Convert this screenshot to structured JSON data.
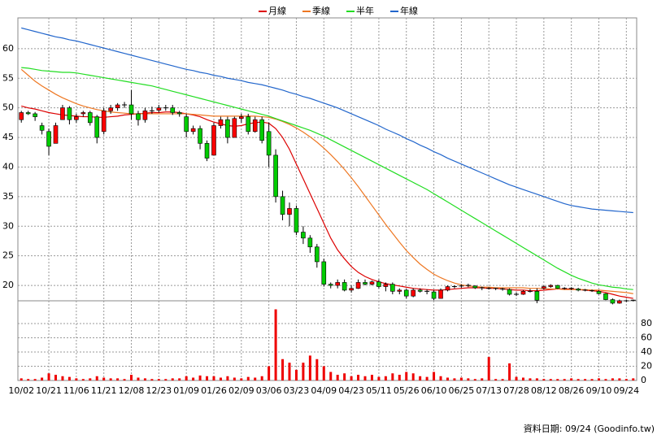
{
  "chart_data": {
    "type": "candlestick",
    "categories": [
      "10/02",
      null,
      null,
      null,
      "10/21",
      null,
      null,
      null,
      "11/06",
      null,
      null,
      null,
      "11/21",
      null,
      null,
      null,
      "12/08",
      null,
      null,
      null,
      "12/23",
      null,
      null,
      null,
      "01/09",
      null,
      null,
      null,
      "01/26",
      null,
      null,
      null,
      "02/09",
      null,
      null,
      null,
      "03/06",
      null,
      null,
      null,
      "03/23",
      null,
      null,
      null,
      "04/09",
      null,
      null,
      null,
      "04/23",
      null,
      null,
      null,
      "05/11",
      null,
      null,
      null,
      "05/26",
      null,
      null,
      null,
      "06/10",
      null,
      null,
      null,
      "06/25",
      null,
      null,
      null,
      "07/13",
      null,
      null,
      null,
      "07/28",
      null,
      null,
      null,
      "08/12",
      null,
      null,
      null,
      "08/26",
      null,
      null,
      null,
      "09/10",
      null,
      null,
      null,
      "09/24",
      null
    ],
    "ohlc": [
      [
        48,
        49.5,
        47.5,
        49.2
      ],
      [
        49.2,
        49.5,
        48.8,
        49
      ],
      [
        49,
        49.3,
        47.8,
        48.5
      ],
      [
        47,
        47.5,
        45.5,
        46.2
      ],
      [
        46,
        46.5,
        42,
        43.5
      ],
      [
        44,
        47.5,
        44,
        47
      ],
      [
        48,
        50.5,
        48,
        50
      ],
      [
        50,
        50.3,
        47.2,
        48
      ],
      [
        48,
        49,
        47.5,
        48.5
      ],
      [
        49,
        49.5,
        48.5,
        49.2
      ],
      [
        49.2,
        49.5,
        47,
        47.5
      ],
      [
        48.5,
        48.8,
        44,
        45
      ],
      [
        46,
        50,
        45.5,
        49.5
      ],
      [
        49.5,
        50.5,
        49,
        50
      ],
      [
        50,
        50.8,
        49.5,
        50.5
      ],
      [
        50.5,
        51,
        50,
        50.6
      ],
      [
        50.5,
        53,
        48,
        49
      ],
      [
        49,
        49.5,
        47,
        48
      ],
      [
        48,
        50,
        47.5,
        49.5
      ],
      [
        49.5,
        50.2,
        49,
        49.6
      ],
      [
        49.6,
        50.5,
        49.2,
        50
      ],
      [
        50,
        50.5,
        49.5,
        50.1
      ],
      [
        50,
        50.5,
        48.8,
        49.2
      ],
      [
        49.2,
        49.5,
        48.5,
        49
      ],
      [
        48.5,
        49,
        45,
        46
      ],
      [
        46,
        47,
        45.5,
        46.5
      ],
      [
        46.5,
        47,
        43,
        44
      ],
      [
        44,
        44.5,
        41,
        41.5
      ],
      [
        42,
        47.5,
        42,
        47
      ],
      [
        47,
        48.5,
        46.5,
        48
      ],
      [
        48,
        48.5,
        44,
        45
      ],
      [
        45,
        48.5,
        45,
        48.2
      ],
      [
        48.2,
        49,
        47.5,
        48.5
      ],
      [
        48.5,
        49,
        45.5,
        46
      ],
      [
        46,
        48.5,
        45.8,
        48
      ],
      [
        48,
        48.5,
        44,
        44.5
      ],
      [
        46,
        47.5,
        40,
        42
      ],
      [
        42,
        43,
        34,
        35
      ],
      [
        35,
        36,
        31,
        32
      ],
      [
        32,
        34,
        30,
        33
      ],
      [
        33,
        33.5,
        28.5,
        29
      ],
      [
        29,
        30,
        27,
        28
      ],
      [
        28,
        28.5,
        25.5,
        26.5
      ],
      [
        26.5,
        27,
        23,
        24
      ],
      [
        24,
        24.5,
        19.8,
        20.2
      ],
      [
        20.2,
        20.5,
        19.5,
        20
      ],
      [
        20,
        21,
        19.5,
        20.5
      ],
      [
        20.5,
        21,
        19,
        19.2
      ],
      [
        19.2,
        20,
        18.8,
        19.5
      ],
      [
        19.5,
        21,
        19.4,
        20.5
      ],
      [
        20.5,
        21,
        20,
        20.2
      ],
      [
        20.2,
        20.8,
        20,
        20.6
      ],
      [
        20.6,
        21,
        19.5,
        19.8
      ],
      [
        19.8,
        20.5,
        19,
        20.2
      ],
      [
        20.2,
        20.5,
        18.5,
        19
      ],
      [
        19,
        19.5,
        18.5,
        19.2
      ],
      [
        19.2,
        19.4,
        17.8,
        18.2
      ],
      [
        18.2,
        19.5,
        18,
        19.2
      ],
      [
        19.2,
        19.5,
        18.8,
        19
      ],
      [
        19,
        19.3,
        18.5,
        18.9
      ],
      [
        18.9,
        19.2,
        17.5,
        17.8
      ],
      [
        17.8,
        19.5,
        17.8,
        19.2
      ],
      [
        19.2,
        20,
        19,
        19.8
      ],
      [
        19.8,
        20,
        19.5,
        19.9
      ],
      [
        19.9,
        20.2,
        19.6,
        20
      ],
      [
        20,
        20.3,
        19.7,
        19.9
      ],
      [
        19.9,
        20,
        19.4,
        19.6
      ],
      [
        19.6,
        19.8,
        19.2,
        19.5
      ],
      [
        19.5,
        19.7,
        19.3,
        19.5
      ],
      [
        19.5,
        19.6,
        19.2,
        19.4
      ],
      [
        19.4,
        19.6,
        19.1,
        19.3
      ],
      [
        19.3,
        19.5,
        18.3,
        18.5
      ],
      [
        18.5,
        18.8,
        18.2,
        18.5
      ],
      [
        18.5,
        19.2,
        18.4,
        19
      ],
      [
        19,
        19.4,
        18.8,
        19.1
      ],
      [
        19,
        19.5,
        17,
        17.5
      ],
      [
        19.5,
        20,
        19.3,
        19.8
      ],
      [
        19.8,
        20.2,
        19.6,
        20
      ],
      [
        20,
        20.1,
        19.4,
        19.5
      ],
      [
        19.5,
        19.7,
        19.3,
        19.5
      ],
      [
        19.5,
        19.7,
        19.2,
        19.4
      ],
      [
        19.4,
        19.6,
        19,
        19.2
      ],
      [
        19.2,
        19.4,
        19,
        19.1
      ],
      [
        19.1,
        19.3,
        18.9,
        19
      ],
      [
        19,
        19.2,
        18.5,
        18.6
      ],
      [
        18.6,
        18.7,
        17.5,
        17.6
      ],
      [
        17.6,
        17.8,
        16.8,
        17
      ],
      [
        17,
        17.6,
        16.9,
        17.4
      ],
      [
        17.4,
        17.6,
        17.2,
        17.5
      ],
      [
        17.5,
        17.6,
        17.3,
        17.4
      ]
    ],
    "up_color": "#ff0000",
    "down_color": "#00cc00",
    "ylim": [
      17.4,
      65.2
    ],
    "yticks": [
      20,
      25,
      30,
      35,
      40,
      45,
      50,
      55,
      60
    ],
    "grid": true,
    "series": [
      {
        "name": "月線",
        "color": "#dd0000",
        "values": [
          50.3,
          50.0,
          49.8,
          49.5,
          49.2,
          49.0,
          48.8,
          48.7,
          48.6,
          48.5,
          48.5,
          48.4,
          48.4,
          48.5,
          48.6,
          48.8,
          48.9,
          49.0,
          49.1,
          49.2,
          49.2,
          49.3,
          49.3,
          49.2,
          49.0,
          48.8,
          48.5,
          48.0,
          47.6,
          47.3,
          47.0,
          46.9,
          47.0,
          47.3,
          47.5,
          47.6,
          47.4,
          46.5,
          45.0,
          43.0,
          40.5,
          38.0,
          35.5,
          33.0,
          30.5,
          28.0,
          26.0,
          24.5,
          23.2,
          22.2,
          21.5,
          21.0,
          20.6,
          20.3,
          20.1,
          19.9,
          19.7,
          19.5,
          19.4,
          19.3,
          19.2,
          19.2,
          19.3,
          19.4,
          19.5,
          19.6,
          19.6,
          19.6,
          19.5,
          19.5,
          19.4,
          19.3,
          19.2,
          19.2,
          19.1,
          19.1,
          19.2,
          19.3,
          19.4,
          19.4,
          19.4,
          19.3,
          19.2,
          19.1,
          19.0,
          18.8,
          18.5,
          18.2,
          18.0,
          17.8
        ]
      },
      {
        "name": "季線",
        "color": "#ee7722",
        "values": [
          56.5,
          55.5,
          54.5,
          53.7,
          53.0,
          52.3,
          51.7,
          51.2,
          50.7,
          50.3,
          50.0,
          49.7,
          49.5,
          49.3,
          49.2,
          49.1,
          49.0,
          49.0,
          49.0,
          49.0,
          49.0,
          49.0,
          49.0,
          49.0,
          49.0,
          48.9,
          48.8,
          48.7,
          48.6,
          48.6,
          48.6,
          48.6,
          48.6,
          48.6,
          48.6,
          48.5,
          48.4,
          48.1,
          47.7,
          47.2,
          46.6,
          45.9,
          45.1,
          44.2,
          43.2,
          42.1,
          40.9,
          39.6,
          38.2,
          36.7,
          35.1,
          33.5,
          31.9,
          30.3,
          28.8,
          27.3,
          25.9,
          24.7,
          23.6,
          22.7,
          21.9,
          21.3,
          20.8,
          20.4,
          20.1,
          19.9,
          19.8,
          19.7,
          19.7,
          19.6,
          19.6,
          19.6,
          19.6,
          19.6,
          19.5,
          19.5,
          19.5,
          19.4,
          19.4,
          19.3,
          19.3,
          19.3,
          19.3,
          19.2,
          19.2,
          19.1,
          19.0,
          18.9,
          18.8,
          18.6
        ]
      },
      {
        "name": "半年",
        "color": "#22dd22",
        "values": [
          56.8,
          56.7,
          56.5,
          56.3,
          56.2,
          56.1,
          56.0,
          56.0,
          55.9,
          55.7,
          55.5,
          55.3,
          55.1,
          54.9,
          54.7,
          54.5,
          54.3,
          54.1,
          53.9,
          53.7,
          53.4,
          53.1,
          52.8,
          52.5,
          52.2,
          51.9,
          51.6,
          51.3,
          51.0,
          50.7,
          50.4,
          50.1,
          49.8,
          49.5,
          49.2,
          48.9,
          48.6,
          48.2,
          47.8,
          47.4,
          47.0,
          46.6,
          46.2,
          45.7,
          45.2,
          44.6,
          44.0,
          43.4,
          42.8,
          42.2,
          41.6,
          41.0,
          40.4,
          39.8,
          39.2,
          38.6,
          38.0,
          37.4,
          36.8,
          36.2,
          35.5,
          34.8,
          34.1,
          33.4,
          32.7,
          32.0,
          31.3,
          30.6,
          29.9,
          29.2,
          28.5,
          27.8,
          27.1,
          26.4,
          25.7,
          25.0,
          24.3,
          23.6,
          22.9,
          22.3,
          21.7,
          21.2,
          20.8,
          20.4,
          20.1,
          19.9,
          19.7,
          19.6,
          19.4,
          19.3
        ]
      },
      {
        "name": "年線",
        "color": "#2266cc",
        "values": [
          63.5,
          63.2,
          62.9,
          62.6,
          62.3,
          62.0,
          61.8,
          61.5,
          61.3,
          61.0,
          60.7,
          60.4,
          60.1,
          59.8,
          59.5,
          59.2,
          58.9,
          58.6,
          58.3,
          58.0,
          57.7,
          57.4,
          57.1,
          56.8,
          56.5,
          56.3,
          56.0,
          55.8,
          55.5,
          55.3,
          55.0,
          54.8,
          54.6,
          54.3,
          54.1,
          53.9,
          53.6,
          53.3,
          53.0,
          52.6,
          52.3,
          51.9,
          51.6,
          51.2,
          50.8,
          50.4,
          50.0,
          49.5,
          49.0,
          48.5,
          48.0,
          47.5,
          47.0,
          46.4,
          45.9,
          45.4,
          44.8,
          44.3,
          43.7,
          43.2,
          42.6,
          42.1,
          41.5,
          41.0,
          40.5,
          40.0,
          39.5,
          39.0,
          38.5,
          38.0,
          37.5,
          37.0,
          36.6,
          36.2,
          35.8,
          35.4,
          35.0,
          34.6,
          34.2,
          33.8,
          33.5,
          33.3,
          33.1,
          32.9,
          32.8,
          32.7,
          32.6,
          32.5,
          32.4,
          32.3
        ]
      }
    ],
    "volume": {
      "color": "#ee0000",
      "ylim": [
        0,
        112
      ],
      "yticks": [
        0,
        20,
        40,
        60,
        80
      ],
      "values": [
        3,
        2,
        2,
        4,
        10,
        8,
        6,
        5,
        3,
        2,
        3,
        6,
        4,
        3,
        3,
        2,
        8,
        4,
        3,
        2,
        2,
        2,
        3,
        3,
        6,
        4,
        7,
        6,
        6,
        4,
        6,
        4,
        3,
        5,
        4,
        6,
        20,
        100,
        30,
        25,
        15,
        25,
        35,
        30,
        20,
        12,
        8,
        10,
        6,
        8,
        6,
        8,
        5,
        6,
        10,
        8,
        12,
        10,
        6,
        5,
        12,
        6,
        4,
        3,
        4,
        3,
        2,
        3,
        33,
        2,
        2,
        24,
        5,
        4,
        3,
        3,
        2,
        2,
        2,
        2,
        3,
        2,
        2,
        2,
        3,
        2,
        3,
        3,
        2,
        3
      ]
    },
    "footnote": "資料日期: 09/24 (Goodinfo.tw)"
  }
}
